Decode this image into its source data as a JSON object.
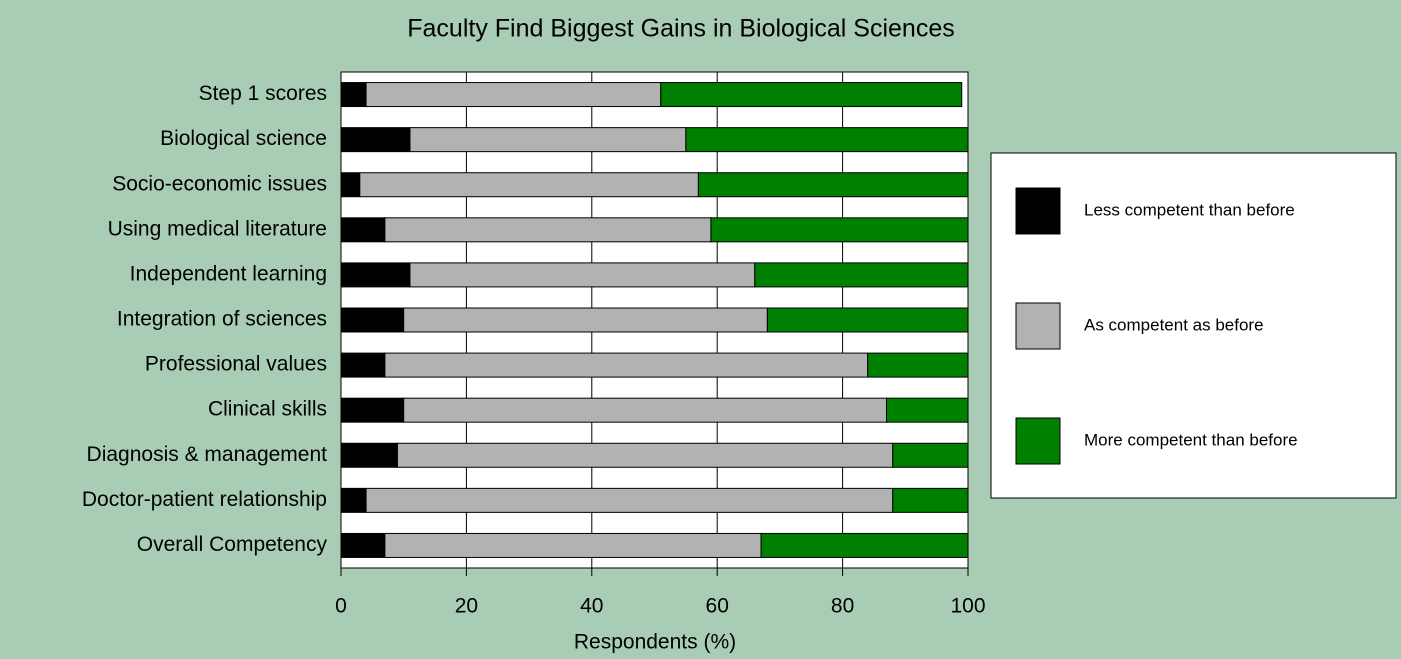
{
  "chart_data": {
    "type": "stacked_bar_horizontal",
    "title": "Faculty Find Biggest Gains in Biological Sciences",
    "x_label": "Respondents (%)",
    "categories": [
      "Step 1 scores",
      "Biological science",
      "Socio-economic issues",
      "Using medical literature",
      "Independent learning",
      "Integration of sciences",
      "Professional values",
      "Clinical skills",
      "Diagnosis & management",
      "Doctor-patient relationship",
      "Overall Competency"
    ],
    "series": [
      {
        "name": "Less competent than before",
        "color": "#000000",
        "values": [
          4,
          11,
          3,
          7,
          11,
          10,
          7,
          10,
          9,
          4,
          7
        ]
      },
      {
        "name": "As competent as before",
        "color": "#b2b2b2",
        "values": [
          47,
          44,
          54,
          52,
          55,
          58,
          77,
          77,
          79,
          84,
          60
        ]
      },
      {
        "name": "More competent than before",
        "color": "#008000",
        "values": [
          48,
          45,
          43,
          41,
          34,
          32,
          16,
          13,
          12,
          12,
          33
        ]
      }
    ],
    "xlim": [
      0,
      100
    ],
    "xticks": [
      0,
      20,
      40,
      60,
      80,
      100
    ],
    "grid": true,
    "legend": "right"
  }
}
